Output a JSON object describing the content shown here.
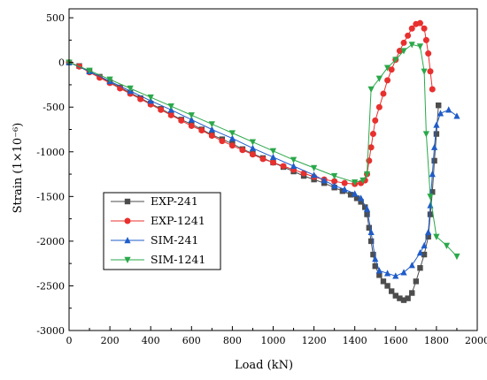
{
  "chart_data": {
    "type": "line",
    "xlabel": "Load (kN)",
    "ylabel": "Strain (1×10⁻⁶)",
    "xlim": [
      0,
      2000
    ],
    "ylim": [
      -3000,
      600
    ],
    "xticks": [
      0,
      200,
      400,
      600,
      800,
      1000,
      1200,
      1400,
      1600,
      1800,
      2000
    ],
    "yticks": [
      -3000,
      -2500,
      -2000,
      -1500,
      -1000,
      -500,
      0,
      500
    ],
    "xtick_labels": [
      "0",
      "200",
      "400",
      "600",
      "800",
      "1000",
      "1200",
      "1400",
      "1600",
      "1800",
      "2000"
    ],
    "ytick_labels": [
      "-3000",
      "-2500",
      "-2000",
      "-1500",
      "-1000",
      "-500",
      "0",
      "500"
    ],
    "grid": false,
    "legend_position": "left",
    "series": [
      {
        "name": "EXP-241",
        "color": "#4d4d4d",
        "marker": "square",
        "points": [
          [
            0,
            0
          ],
          [
            50,
            -40
          ],
          [
            100,
            -100
          ],
          [
            150,
            -160
          ],
          [
            200,
            -220
          ],
          [
            250,
            -280
          ],
          [
            300,
            -340
          ],
          [
            350,
            -400
          ],
          [
            400,
            -460
          ],
          [
            450,
            -520
          ],
          [
            500,
            -580
          ],
          [
            550,
            -640
          ],
          [
            600,
            -690
          ],
          [
            650,
            -750
          ],
          [
            700,
            -810
          ],
          [
            750,
            -860
          ],
          [
            800,
            -910
          ],
          [
            850,
            -970
          ],
          [
            900,
            -1020
          ],
          [
            950,
            -1070
          ],
          [
            1000,
            -1120
          ],
          [
            1050,
            -1170
          ],
          [
            1100,
            -1220
          ],
          [
            1150,
            -1270
          ],
          [
            1200,
            -1310
          ],
          [
            1250,
            -1350
          ],
          [
            1300,
            -1400
          ],
          [
            1340,
            -1440
          ],
          [
            1380,
            -1480
          ],
          [
            1410,
            -1520
          ],
          [
            1430,
            -1560
          ],
          [
            1450,
            -1620
          ],
          [
            1460,
            -1700
          ],
          [
            1470,
            -1850
          ],
          [
            1480,
            -2000
          ],
          [
            1490,
            -2150
          ],
          [
            1500,
            -2280
          ],
          [
            1520,
            -2380
          ],
          [
            1540,
            -2450
          ],
          [
            1560,
            -2500
          ],
          [
            1580,
            -2560
          ],
          [
            1600,
            -2610
          ],
          [
            1620,
            -2640
          ],
          [
            1640,
            -2660
          ],
          [
            1660,
            -2640
          ],
          [
            1680,
            -2580
          ],
          [
            1700,
            -2450
          ],
          [
            1720,
            -2300
          ],
          [
            1740,
            -2150
          ],
          [
            1760,
            -1950
          ],
          [
            1770,
            -1700
          ],
          [
            1780,
            -1450
          ],
          [
            1790,
            -1100
          ],
          [
            1800,
            -800
          ],
          [
            1810,
            -480
          ]
        ]
      },
      {
        "name": "EXP-1241",
        "color": "#e8302e",
        "marker": "circle",
        "points": [
          [
            0,
            0
          ],
          [
            50,
            -45
          ],
          [
            100,
            -110
          ],
          [
            150,
            -170
          ],
          [
            200,
            -230
          ],
          [
            250,
            -290
          ],
          [
            300,
            -350
          ],
          [
            350,
            -410
          ],
          [
            400,
            -470
          ],
          [
            450,
            -530
          ],
          [
            500,
            -590
          ],
          [
            550,
            -650
          ],
          [
            600,
            -710
          ],
          [
            650,
            -760
          ],
          [
            700,
            -820
          ],
          [
            750,
            -880
          ],
          [
            800,
            -930
          ],
          [
            850,
            -980
          ],
          [
            900,
            -1030
          ],
          [
            950,
            -1080
          ],
          [
            1000,
            -1120
          ],
          [
            1050,
            -1160
          ],
          [
            1100,
            -1200
          ],
          [
            1150,
            -1240
          ],
          [
            1200,
            -1280
          ],
          [
            1250,
            -1310
          ],
          [
            1300,
            -1330
          ],
          [
            1350,
            -1350
          ],
          [
            1400,
            -1360
          ],
          [
            1430,
            -1350
          ],
          [
            1450,
            -1320
          ],
          [
            1460,
            -1250
          ],
          [
            1470,
            -1100
          ],
          [
            1480,
            -950
          ],
          [
            1490,
            -800
          ],
          [
            1500,
            -650
          ],
          [
            1520,
            -500
          ],
          [
            1540,
            -350
          ],
          [
            1560,
            -200
          ],
          [
            1580,
            -80
          ],
          [
            1600,
            30
          ],
          [
            1620,
            130
          ],
          [
            1640,
            220
          ],
          [
            1660,
            300
          ],
          [
            1680,
            380
          ],
          [
            1700,
            430
          ],
          [
            1720,
            440
          ],
          [
            1740,
            380
          ],
          [
            1750,
            250
          ],
          [
            1760,
            100
          ],
          [
            1770,
            -100
          ],
          [
            1780,
            -300
          ]
        ]
      },
      {
        "name": "SIM-241",
        "color": "#1f5cc8",
        "marker": "triangle-up",
        "points": [
          [
            0,
            0
          ],
          [
            100,
            -100
          ],
          [
            200,
            -210
          ],
          [
            300,
            -320
          ],
          [
            400,
            -430
          ],
          [
            500,
            -530
          ],
          [
            600,
            -640
          ],
          [
            700,
            -750
          ],
          [
            800,
            -850
          ],
          [
            900,
            -960
          ],
          [
            1000,
            -1060
          ],
          [
            1100,
            -1160
          ],
          [
            1200,
            -1260
          ],
          [
            1250,
            -1320
          ],
          [
            1300,
            -1380
          ],
          [
            1350,
            -1420
          ],
          [
            1400,
            -1470
          ],
          [
            1430,
            -1520
          ],
          [
            1460,
            -1640
          ],
          [
            1480,
            -1900
          ],
          [
            1500,
            -2200
          ],
          [
            1520,
            -2330
          ],
          [
            1560,
            -2360
          ],
          [
            1600,
            -2390
          ],
          [
            1640,
            -2350
          ],
          [
            1680,
            -2270
          ],
          [
            1720,
            -2130
          ],
          [
            1740,
            -2050
          ],
          [
            1760,
            -1900
          ],
          [
            1770,
            -1600
          ],
          [
            1780,
            -1250
          ],
          [
            1790,
            -950
          ],
          [
            1800,
            -700
          ],
          [
            1820,
            -570
          ],
          [
            1860,
            -530
          ],
          [
            1900,
            -600
          ]
        ]
      },
      {
        "name": "SIM-1241",
        "color": "#2aa84a",
        "marker": "triangle-down",
        "points": [
          [
            0,
            0
          ],
          [
            100,
            -90
          ],
          [
            200,
            -190
          ],
          [
            300,
            -290
          ],
          [
            400,
            -390
          ],
          [
            500,
            -490
          ],
          [
            600,
            -590
          ],
          [
            700,
            -690
          ],
          [
            800,
            -790
          ],
          [
            900,
            -890
          ],
          [
            1000,
            -990
          ],
          [
            1100,
            -1090
          ],
          [
            1200,
            -1180
          ],
          [
            1300,
            -1270
          ],
          [
            1400,
            -1340
          ],
          [
            1440,
            -1320
          ],
          [
            1460,
            -1250
          ],
          [
            1480,
            -300
          ],
          [
            1520,
            -180
          ],
          [
            1560,
            -60
          ],
          [
            1600,
            30
          ],
          [
            1640,
            130
          ],
          [
            1680,
            200
          ],
          [
            1720,
            180
          ],
          [
            1740,
            -100
          ],
          [
            1750,
            -800
          ],
          [
            1770,
            -1500
          ],
          [
            1800,
            -1950
          ],
          [
            1850,
            -2050
          ],
          [
            1900,
            -2170
          ]
        ]
      }
    ]
  }
}
